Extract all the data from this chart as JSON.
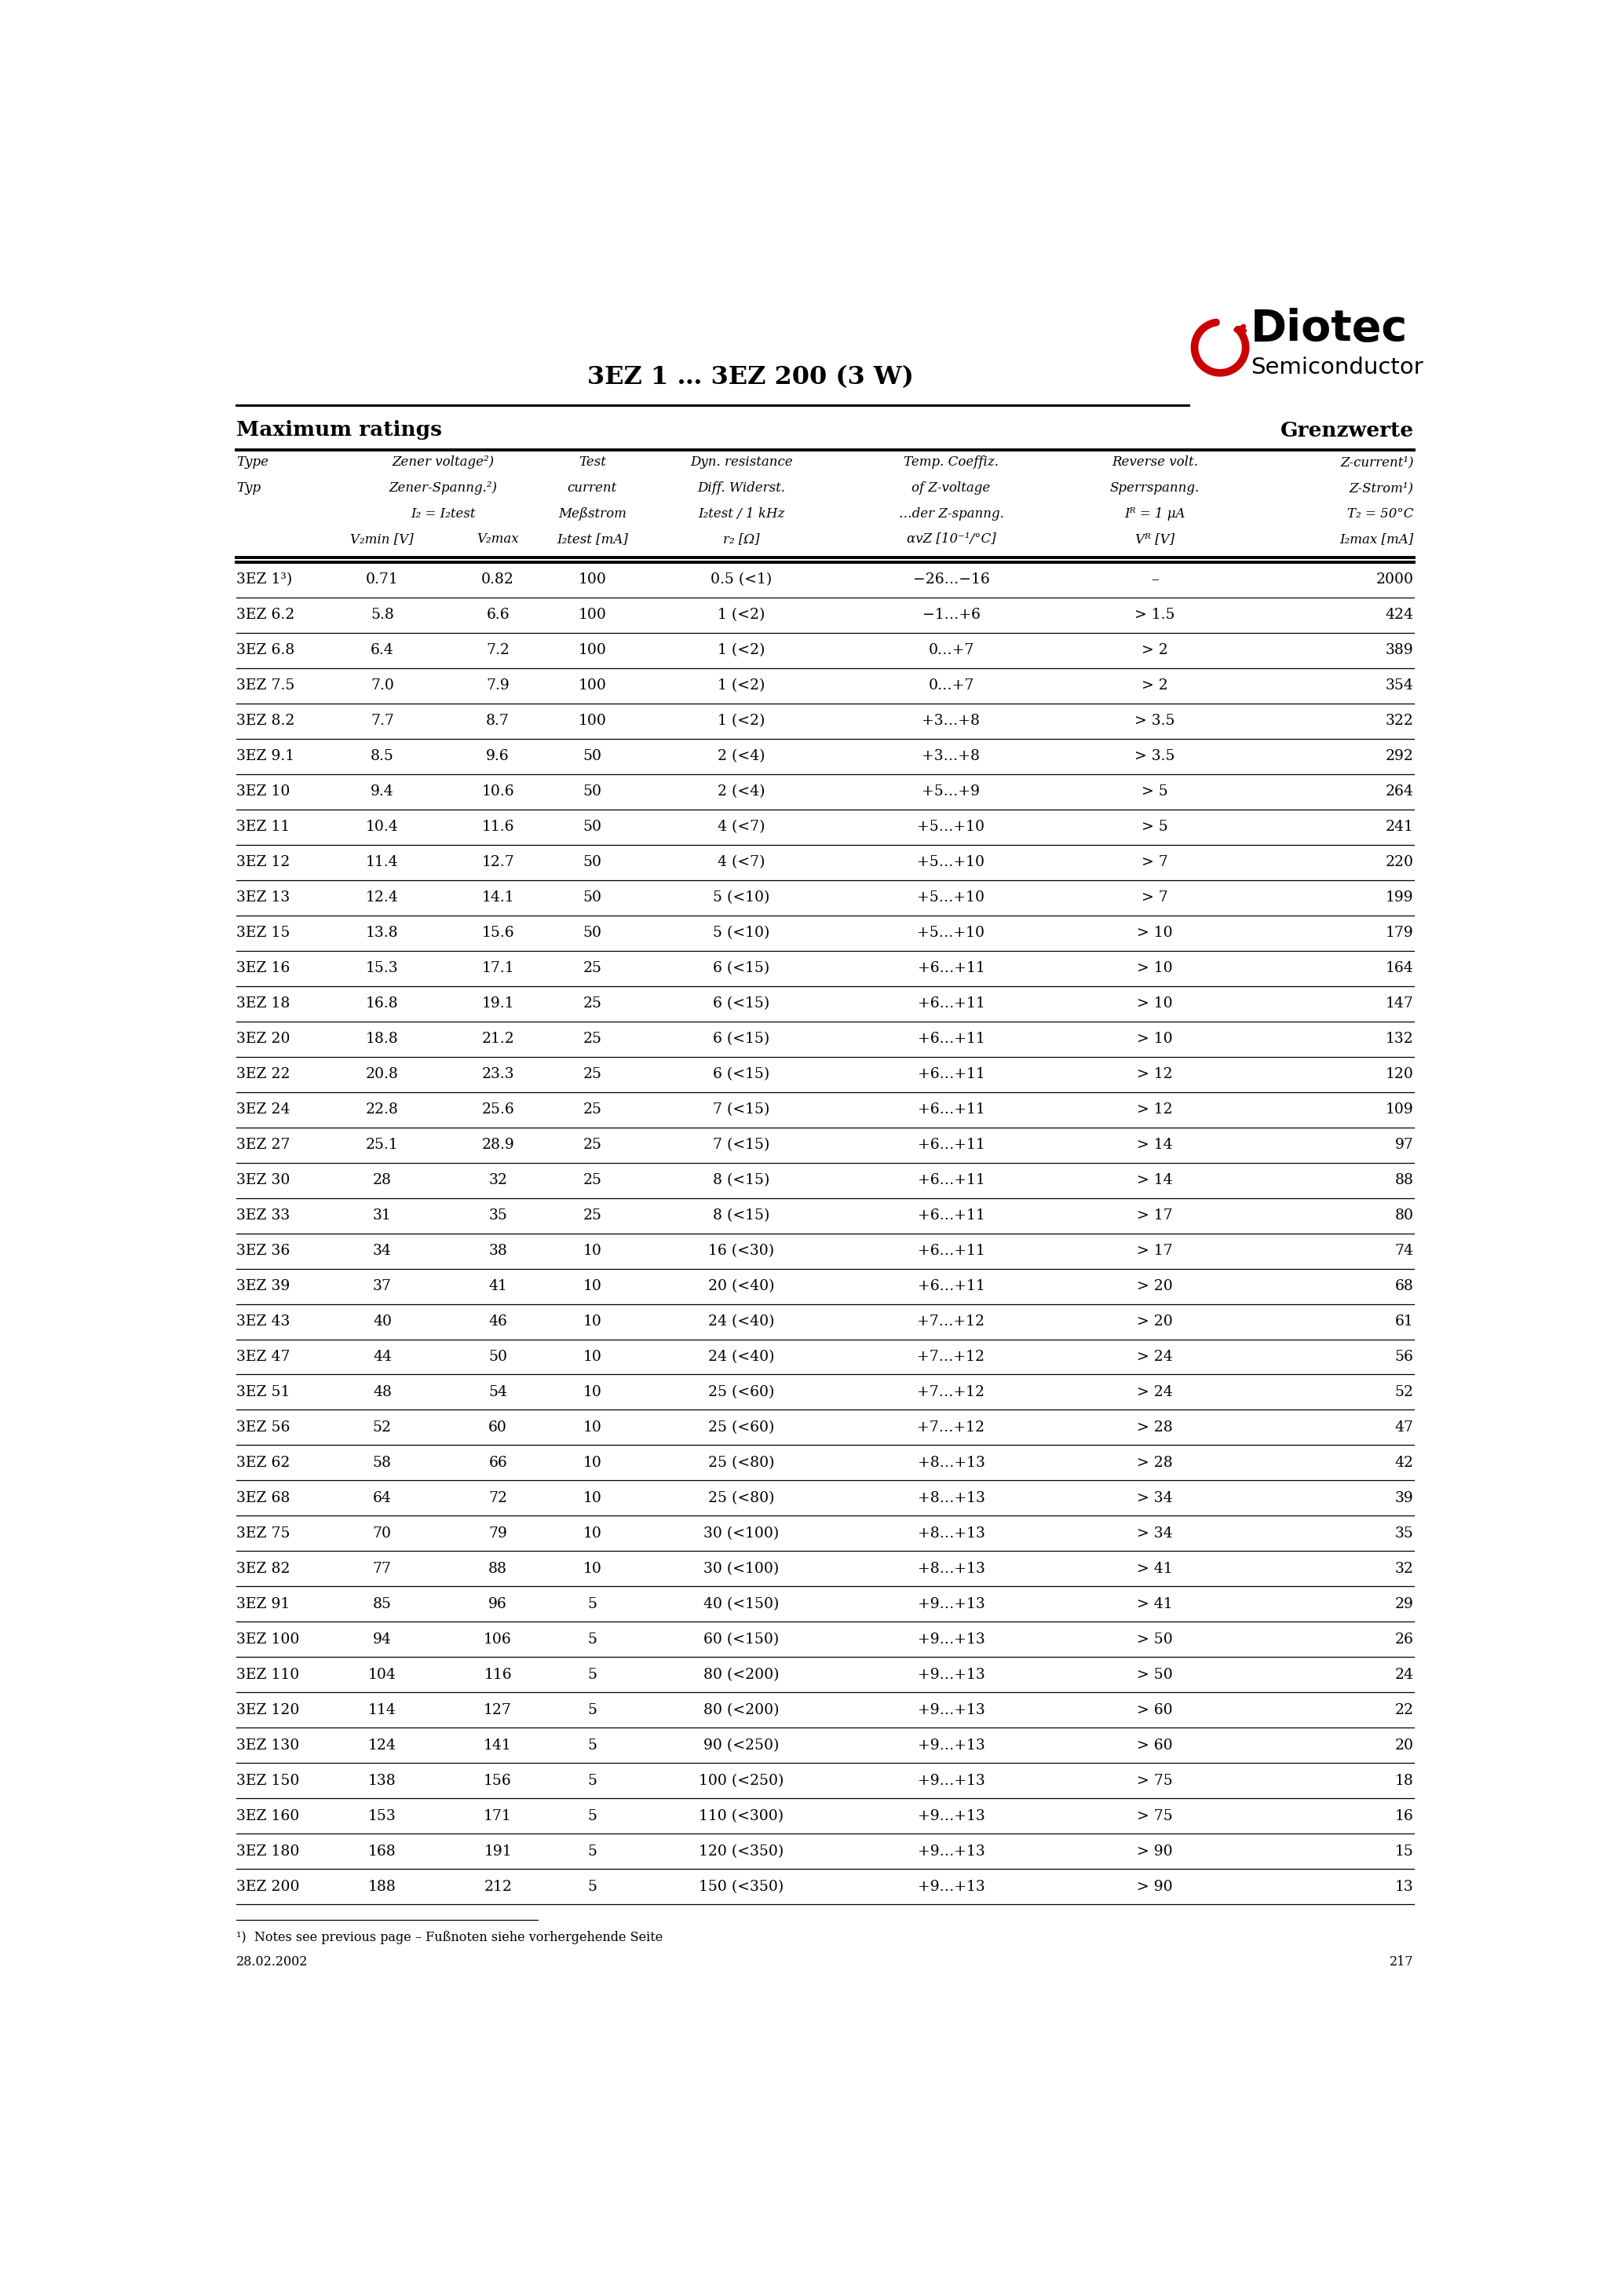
{
  "title": "3EZ 1 … 3EZ 200 (3 W)",
  "header_left": "Maximum ratings",
  "header_right": "Grenzwerte",
  "rows": [
    [
      "3EZ 1³)",
      "0.71",
      "0.82",
      "100",
      "0.5 (<1)",
      "−26…−16",
      "–",
      "2000"
    ],
    [
      "3EZ 6.2",
      "5.8",
      "6.6",
      "100",
      "1 (<2)",
      "−1…+6",
      "> 1.5",
      "424"
    ],
    [
      "3EZ 6.8",
      "6.4",
      "7.2",
      "100",
      "1 (<2)",
      "0…+7",
      "> 2",
      "389"
    ],
    [
      "3EZ 7.5",
      "7.0",
      "7.9",
      "100",
      "1 (<2)",
      "0…+7",
      "> 2",
      "354"
    ],
    [
      "3EZ 8.2",
      "7.7",
      "8.7",
      "100",
      "1 (<2)",
      "+3…+8",
      "> 3.5",
      "322"
    ],
    [
      "3EZ 9.1",
      "8.5",
      "9.6",
      "50",
      "2 (<4)",
      "+3…+8",
      "> 3.5",
      "292"
    ],
    [
      "3EZ 10",
      "9.4",
      "10.6",
      "50",
      "2 (<4)",
      "+5…+9",
      "> 5",
      "264"
    ],
    [
      "3EZ 11",
      "10.4",
      "11.6",
      "50",
      "4 (<7)",
      "+5…+10",
      "> 5",
      "241"
    ],
    [
      "3EZ 12",
      "11.4",
      "12.7",
      "50",
      "4 (<7)",
      "+5…+10",
      "> 7",
      "220"
    ],
    [
      "3EZ 13",
      "12.4",
      "14.1",
      "50",
      "5 (<10)",
      "+5…+10",
      "> 7",
      "199"
    ],
    [
      "3EZ 15",
      "13.8",
      "15.6",
      "50",
      "5 (<10)",
      "+5…+10",
      "> 10",
      "179"
    ],
    [
      "3EZ 16",
      "15.3",
      "17.1",
      "25",
      "6 (<15)",
      "+6…+11",
      "> 10",
      "164"
    ],
    [
      "3EZ 18",
      "16.8",
      "19.1",
      "25",
      "6 (<15)",
      "+6…+11",
      "> 10",
      "147"
    ],
    [
      "3EZ 20",
      "18.8",
      "21.2",
      "25",
      "6 (<15)",
      "+6…+11",
      "> 10",
      "132"
    ],
    [
      "3EZ 22",
      "20.8",
      "23.3",
      "25",
      "6 (<15)",
      "+6…+11",
      "> 12",
      "120"
    ],
    [
      "3EZ 24",
      "22.8",
      "25.6",
      "25",
      "7 (<15)",
      "+6…+11",
      "> 12",
      "109"
    ],
    [
      "3EZ 27",
      "25.1",
      "28.9",
      "25",
      "7 (<15)",
      "+6…+11",
      "> 14",
      "97"
    ],
    [
      "3EZ 30",
      "28",
      "32",
      "25",
      "8 (<15)",
      "+6…+11",
      "> 14",
      "88"
    ],
    [
      "3EZ 33",
      "31",
      "35",
      "25",
      "8 (<15)",
      "+6…+11",
      "> 17",
      "80"
    ],
    [
      "3EZ 36",
      "34",
      "38",
      "10",
      "16 (<30)",
      "+6…+11",
      "> 17",
      "74"
    ],
    [
      "3EZ 39",
      "37",
      "41",
      "10",
      "20 (<40)",
      "+6…+11",
      "> 20",
      "68"
    ],
    [
      "3EZ 43",
      "40",
      "46",
      "10",
      "24 (<40)",
      "+7…+12",
      "> 20",
      "61"
    ],
    [
      "3EZ 47",
      "44",
      "50",
      "10",
      "24 (<40)",
      "+7…+12",
      "> 24",
      "56"
    ],
    [
      "3EZ 51",
      "48",
      "54",
      "10",
      "25 (<60)",
      "+7…+12",
      "> 24",
      "52"
    ],
    [
      "3EZ 56",
      "52",
      "60",
      "10",
      "25 (<60)",
      "+7…+12",
      "> 28",
      "47"
    ],
    [
      "3EZ 62",
      "58",
      "66",
      "10",
      "25 (<80)",
      "+8…+13",
      "> 28",
      "42"
    ],
    [
      "3EZ 68",
      "64",
      "72",
      "10",
      "25 (<80)",
      "+8…+13",
      "> 34",
      "39"
    ],
    [
      "3EZ 75",
      "70",
      "79",
      "10",
      "30 (<100)",
      "+8…+13",
      "> 34",
      "35"
    ],
    [
      "3EZ 82",
      "77",
      "88",
      "10",
      "30 (<100)",
      "+8…+13",
      "> 41",
      "32"
    ],
    [
      "3EZ 91",
      "85",
      "96",
      "5",
      "40 (<150)",
      "+9…+13",
      "> 41",
      "29"
    ],
    [
      "3EZ 100",
      "94",
      "106",
      "5",
      "60 (<150)",
      "+9…+13",
      "> 50",
      "26"
    ],
    [
      "3EZ 110",
      "104",
      "116",
      "5",
      "80 (<200)",
      "+9…+13",
      "> 50",
      "24"
    ],
    [
      "3EZ 120",
      "114",
      "127",
      "5",
      "80 (<200)",
      "+9…+13",
      "> 60",
      "22"
    ],
    [
      "3EZ 130",
      "124",
      "141",
      "5",
      "90 (<250)",
      "+9…+13",
      "> 60",
      "20"
    ],
    [
      "3EZ 150",
      "138",
      "156",
      "5",
      "100 (<250)",
      "+9…+13",
      "> 75",
      "18"
    ],
    [
      "3EZ 160",
      "153",
      "171",
      "5",
      "110 (<300)",
      "+9…+13",
      "> 75",
      "16"
    ],
    [
      "3EZ 180",
      "168",
      "191",
      "5",
      "120 (<350)",
      "+9…+13",
      "> 90",
      "15"
    ],
    [
      "3EZ 200",
      "188",
      "212",
      "5",
      "150 (<350)",
      "+9…+13",
      "> 90",
      "13"
    ]
  ],
  "footnote": "¹)  Notes see previous page – Fußnoten siehe vorhergehende Seite",
  "date": "28.02.2002",
  "page": "217"
}
